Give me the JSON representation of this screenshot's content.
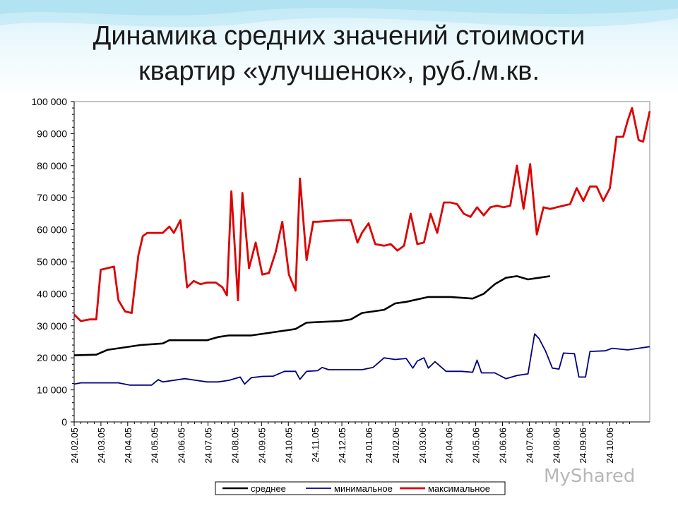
{
  "slide": {
    "title_line1": "Динамика средних значений стоимости",
    "title_line2": "квартир «улучшенок», руб./м.кв."
  },
  "watermark": "MyShared",
  "chart_data": {
    "type": "line",
    "ylim": [
      0,
      100000
    ],
    "y_ticks": [
      "100 000",
      "90 000",
      "80 000",
      "70 000",
      "60 000",
      "50 000",
      "40 000",
      "30 000",
      "20 000",
      "10 000",
      "0"
    ],
    "y_tick_values": [
      100000,
      90000,
      80000,
      70000,
      60000,
      50000,
      40000,
      30000,
      20000,
      10000,
      0
    ],
    "x_ticks": [
      "24.02.05",
      "24.03.05",
      "24.04.05",
      "24.05.05",
      "24.06.05",
      "24.07.05",
      "24.08.05",
      "24.09.05",
      "24.10.05",
      "24.11.05",
      "24.12.05",
      "24.01.06",
      "24.02.06",
      "24.03.06",
      "24.04.06",
      "24.05.06",
      "24.06.06",
      "24.07.06",
      "24.08.06",
      "24.09.06",
      "24.10.06"
    ],
    "x_range_months": [
      0,
      21.5
    ],
    "legend": [
      "среднее",
      "минимальное",
      "максимальное"
    ],
    "legend_position": "bottom",
    "grid": false,
    "series": [
      {
        "name": "среднее",
        "color": "#000000",
        "points": [
          [
            0,
            20800
          ],
          [
            1,
            21000
          ],
          [
            1.5,
            22500
          ],
          [
            2,
            23000
          ],
          [
            3,
            24000
          ],
          [
            4,
            24500
          ],
          [
            4.3,
            25500
          ],
          [
            5,
            25500
          ],
          [
            6,
            25500
          ],
          [
            6.5,
            26500
          ],
          [
            7,
            27000
          ],
          [
            8,
            27000
          ],
          [
            9,
            28000
          ],
          [
            10,
            29000
          ],
          [
            10.5,
            31000
          ],
          [
            12,
            31500
          ],
          [
            12.5,
            32000
          ],
          [
            13,
            34000
          ],
          [
            14,
            35000
          ],
          [
            14.5,
            37000
          ],
          [
            15,
            37500
          ],
          [
            16,
            39000
          ],
          [
            17,
            39000
          ],
          [
            18,
            38500
          ],
          [
            18.5,
            40000
          ],
          [
            19,
            43000
          ],
          [
            19.5,
            45000
          ],
          [
            20,
            45500
          ],
          [
            20.5,
            44500
          ],
          [
            21,
            45000
          ],
          [
            21.5,
            45500
          ]
        ]
      },
      {
        "name": "минимальное",
        "color": "#000080",
        "points": [
          [
            0,
            11800
          ],
          [
            0.3,
            12200
          ],
          [
            1,
            12200
          ],
          [
            2,
            12200
          ],
          [
            2.5,
            11500
          ],
          [
            3,
            11500
          ],
          [
            3.5,
            11500
          ],
          [
            3.8,
            13200
          ],
          [
            4,
            12500
          ],
          [
            5,
            13500
          ],
          [
            5.5,
            13000
          ],
          [
            6,
            12500
          ],
          [
            6.5,
            12500
          ],
          [
            7,
            13000
          ],
          [
            7.5,
            14000
          ],
          [
            7.7,
            11800
          ],
          [
            8,
            13800
          ],
          [
            8.5,
            14200
          ],
          [
            9,
            14300
          ],
          [
            9.5,
            15800
          ],
          [
            10,
            15800
          ],
          [
            10.2,
            13300
          ],
          [
            10.5,
            15800
          ],
          [
            11,
            16000
          ],
          [
            11.2,
            17000
          ],
          [
            11.5,
            16300
          ],
          [
            12,
            16300
          ],
          [
            13,
            16300
          ],
          [
            13.5,
            17000
          ],
          [
            14,
            20000
          ],
          [
            14.5,
            19500
          ],
          [
            15,
            19800
          ],
          [
            15.3,
            16800
          ],
          [
            15.5,
            19000
          ],
          [
            15.8,
            20000
          ],
          [
            16,
            16800
          ],
          [
            16.3,
            18800
          ],
          [
            16.8,
            15800
          ],
          [
            17.5,
            15800
          ],
          [
            18,
            15500
          ],
          [
            18.2,
            19300
          ],
          [
            18.4,
            15300
          ],
          [
            19,
            15300
          ],
          [
            19.5,
            13500
          ],
          [
            20,
            14500
          ],
          [
            20.5,
            15000
          ],
          [
            20.8,
            27500
          ],
          [
            21,
            26000
          ],
          [
            21.3,
            22000
          ],
          [
            21.6,
            16800
          ],
          [
            21.9,
            16500
          ],
          [
            22.1,
            21500
          ],
          [
            22.6,
            21300
          ],
          [
            22.8,
            14000
          ],
          [
            23.1,
            14000
          ],
          [
            23.3,
            22000
          ],
          [
            24,
            22200
          ],
          [
            24.3,
            23000
          ],
          [
            25,
            22500
          ],
          [
            25.5,
            23000
          ],
          [
            26,
            23500
          ]
        ]
      },
      {
        "name": "максимальное",
        "color": "#dd0000",
        "points": [
          [
            0,
            33500
          ],
          [
            0.3,
            31500
          ],
          [
            0.7,
            32000
          ],
          [
            1,
            32000
          ],
          [
            1.2,
            47500
          ],
          [
            1.5,
            48000
          ],
          [
            1.8,
            48500
          ],
          [
            2,
            38000
          ],
          [
            2.3,
            34500
          ],
          [
            2.6,
            34000
          ],
          [
            2.9,
            52000
          ],
          [
            3.1,
            58000
          ],
          [
            3.3,
            59000
          ],
          [
            4,
            59000
          ],
          [
            4.3,
            61000
          ],
          [
            4.5,
            59000
          ],
          [
            4.8,
            63000
          ],
          [
            5.1,
            42000
          ],
          [
            5.4,
            44000
          ],
          [
            5.7,
            43000
          ],
          [
            6,
            43500
          ],
          [
            6.4,
            43500
          ],
          [
            6.7,
            42000
          ],
          [
            6.9,
            39500
          ],
          [
            7.1,
            72000
          ],
          [
            7.4,
            38000
          ],
          [
            7.6,
            71500
          ],
          [
            7.9,
            48000
          ],
          [
            8.2,
            56000
          ],
          [
            8.5,
            46000
          ],
          [
            8.8,
            46500
          ],
          [
            9.1,
            53000
          ],
          [
            9.4,
            62500
          ],
          [
            9.7,
            46000
          ],
          [
            10.0,
            41000
          ],
          [
            10.2,
            76000
          ],
          [
            10.5,
            50500
          ],
          [
            10.8,
            62500
          ],
          [
            11,
            62500
          ],
          [
            12,
            63000
          ],
          [
            12.5,
            63000
          ],
          [
            12.8,
            56000
          ],
          [
            13,
            59000
          ],
          [
            13.3,
            62000
          ],
          [
            13.6,
            55500
          ],
          [
            14,
            55000
          ],
          [
            14.3,
            55500
          ],
          [
            14.6,
            53500
          ],
          [
            14.9,
            55000
          ],
          [
            15.2,
            65000
          ],
          [
            15.5,
            55500
          ],
          [
            15.8,
            56000
          ],
          [
            16.1,
            65000
          ],
          [
            16.4,
            59000
          ],
          [
            16.7,
            68500
          ],
          [
            17,
            68500
          ],
          [
            17.3,
            68000
          ],
          [
            17.6,
            65000
          ],
          [
            17.9,
            64000
          ],
          [
            18.2,
            67000
          ],
          [
            18.5,
            64500
          ],
          [
            18.8,
            67000
          ],
          [
            19.1,
            67500
          ],
          [
            19.4,
            67000
          ],
          [
            19.7,
            67500
          ],
          [
            20,
            80000
          ],
          [
            20.3,
            66500
          ],
          [
            20.6,
            80500
          ],
          [
            20.9,
            58500
          ],
          [
            21.2,
            67000
          ],
          [
            21.5,
            66500
          ],
          [
            21.8,
            67000
          ],
          [
            22.1,
            67500
          ],
          [
            22.4,
            68000
          ],
          [
            22.7,
            73000
          ],
          [
            23,
            69000
          ],
          [
            23.3,
            73500
          ],
          [
            23.6,
            73500
          ],
          [
            23.9,
            69000
          ],
          [
            24.2,
            73000
          ],
          [
            24.5,
            89000
          ],
          [
            24.8,
            89000
          ],
          [
            25,
            94000
          ],
          [
            25.2,
            98000
          ],
          [
            25.5,
            88000
          ],
          [
            25.7,
            87500
          ],
          [
            26,
            97000
          ]
        ]
      }
    ]
  }
}
